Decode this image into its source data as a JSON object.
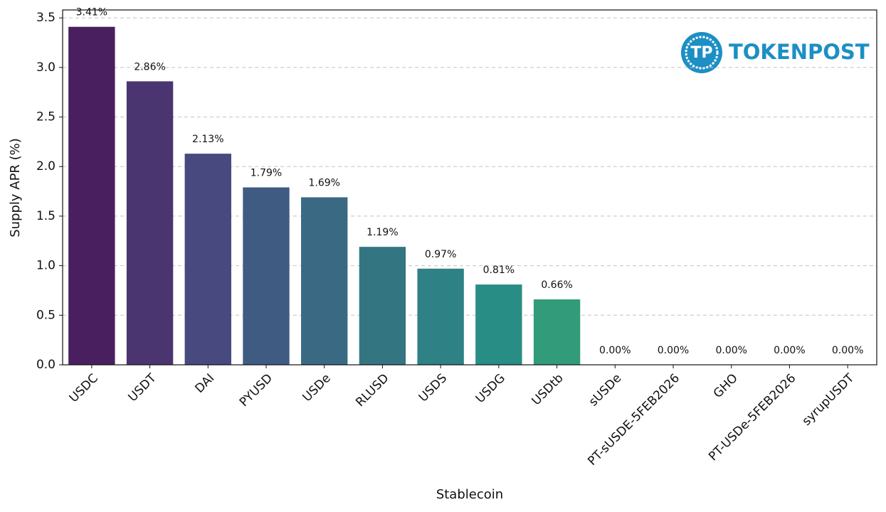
{
  "chart_data": {
    "type": "bar",
    "xlabel": "Stablecoin",
    "ylabel": "Supply APR (%)",
    "watermark": "TOKENPOST",
    "categories": [
      "USDC",
      "USDT",
      "DAI",
      "PYUSD",
      "USDe",
      "RLUSD",
      "USDS",
      "USDG",
      "USDtb",
      "sUSDe",
      "PT-sUSDE-5FEB2026",
      "GHO",
      "PT-USDe-5FEB2026",
      "syrupUSDT"
    ],
    "values": [
      3.41,
      2.86,
      2.13,
      1.79,
      1.69,
      1.19,
      0.97,
      0.81,
      0.66,
      0,
      0,
      0,
      0,
      0
    ],
    "value_labels": [
      "3.41%",
      "2.86%",
      "2.13%",
      "1.79%",
      "1.69%",
      "1.19%",
      "0.97%",
      "0.81%",
      "0.66%",
      "0.00%",
      "0.00%",
      "0.00%",
      "0.00%",
      "0.00%"
    ],
    "colors": [
      "#4a1f5f",
      "#4a3570",
      "#48497e",
      "#405b82",
      "#3a6984",
      "#347582",
      "#2e8185",
      "#288d85",
      "#319b7a",
      "#40a776",
      "#56b567",
      "#74c25a",
      "#98cc4a",
      "#c0d53c"
    ],
    "ylim": [
      0,
      3.58
    ],
    "yticks": [
      {
        "value": 0,
        "label": "0.0"
      },
      0.5,
      {
        "value": 1,
        "label": "1.0"
      },
      1.5,
      {
        "value": 2,
        "label": "2.0"
      },
      2.5,
      {
        "value": 3,
        "label": "3.0"
      },
      3.5
    ],
    "grid": true
  }
}
